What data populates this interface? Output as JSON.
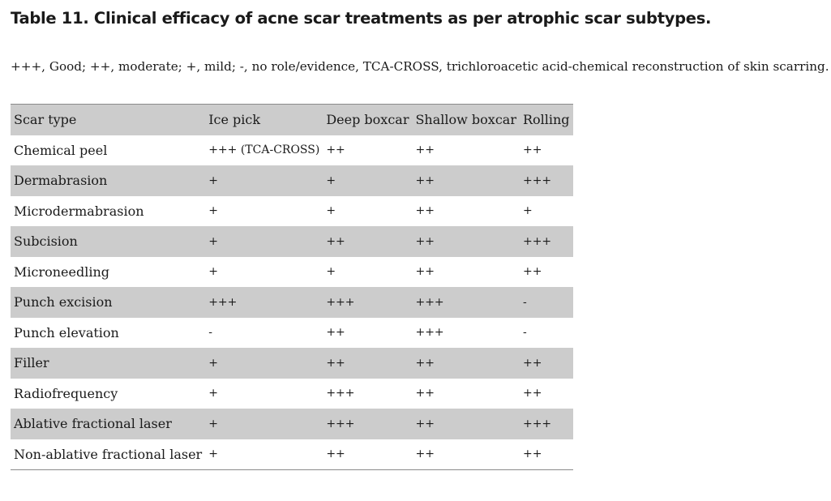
{
  "title": "Table 11. Clinical efficacy of acne scar treatments as per atrophic scar subtypes.",
  "footnote": "+++, Good; ++, moderate; +, mild; -, no role/evidence, TCA-CROSS, trichloroacetic acid-chemical reconstruction of skin scarring.",
  "table": {
    "headers": [
      "Scar type",
      "Ice pick",
      "Deep boxcar",
      "Shallow boxcar",
      "Rolling"
    ],
    "rows": [
      [
        "Chemical peel",
        "+++ (TCA-CROSS)",
        "++",
        "++",
        "++"
      ],
      [
        "Dermabrasion",
        "+",
        "+",
        "++",
        "+++"
      ],
      [
        "Microdermabrasion",
        "+",
        "+",
        "++",
        "+"
      ],
      [
        "Subcision",
        "+",
        "++",
        "++",
        "+++"
      ],
      [
        "Microneedling",
        "+",
        "+",
        "++",
        "++"
      ],
      [
        "Punch excision",
        "+++",
        "+++",
        "+++",
        "-"
      ],
      [
        "Punch elevation",
        "-",
        "++",
        "+++",
        "-"
      ],
      [
        "Filler",
        "+",
        "++",
        "++",
        "++"
      ],
      [
        "Radiofrequency",
        "+",
        "+++",
        "++",
        "++"
      ],
      [
        "Ablative fractional laser",
        "+",
        "+++",
        "++",
        "+++"
      ],
      [
        "Non-ablative fractional laser",
        "+",
        "++",
        "++",
        "++"
      ]
    ]
  },
  "colors": {
    "shaded_row": "#cccccc",
    "rule": "#8a8a8a",
    "text": "#1a1a1a"
  }
}
